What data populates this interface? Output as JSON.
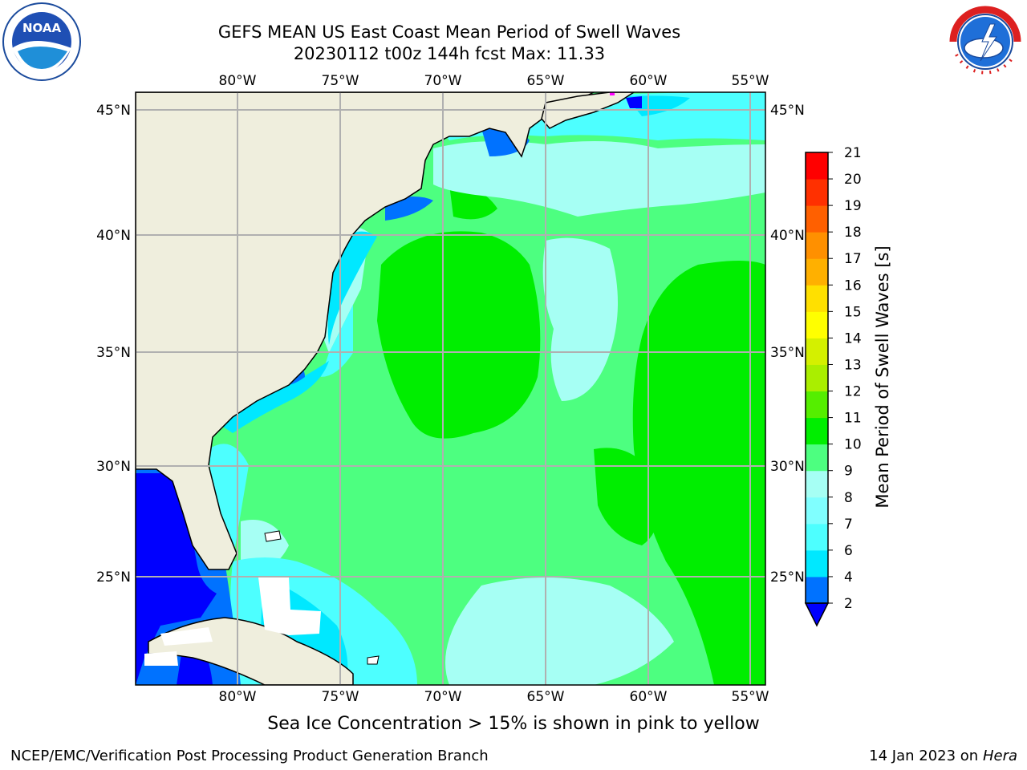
{
  "title": {
    "line1": "GEFS MEAN US East Coast Mean Period of Swell Waves",
    "line2": "20230112 t00z 144h fcst   Max: 11.33"
  },
  "logos": {
    "left": {
      "icon": "noaa-logo-icon",
      "text": "NOAA"
    },
    "right": {
      "icon": "nws-logo-icon",
      "text": "NATIONAL WEATHER SERVICE"
    }
  },
  "map": {
    "lon_ticks": [
      "80°W",
      "75°W",
      "70°W",
      "65°W",
      "60°W",
      "55°W"
    ],
    "lat_ticks": [
      "45°N",
      "40°N",
      "35°N",
      "30°N",
      "25°N"
    ],
    "land_color": "#efeedd",
    "ice_color": "#ff00ff"
  },
  "colorbar": {
    "label": "Mean Period of Swell Waves [s]",
    "ticks": [
      "2",
      "4",
      "6",
      "7",
      "8",
      "9",
      "10",
      "11",
      "12",
      "13",
      "14",
      "15",
      "16",
      "17",
      "18",
      "19",
      "20",
      "21"
    ],
    "colors": [
      "#0072ff",
      "#00e8ff",
      "#4dffff",
      "#80ffff",
      "#a6fff4",
      "#4dff80",
      "#00ee00",
      "#55ee00",
      "#aaee00",
      "#d4f000",
      "#ffff00",
      "#ffe000",
      "#ffb000",
      "#ff9000",
      "#ff6000",
      "#ff3000",
      "#ff0000"
    ],
    "under_color": "#0000ff"
  },
  "footer": {
    "note": "Sea Ice Concentration > 15% is shown in pink to yellow",
    "credit": "NCEP/EMC/Verification Post Processing Product Generation Branch",
    "date": "14 Jan 2023 on ",
    "host": "Hera"
  }
}
